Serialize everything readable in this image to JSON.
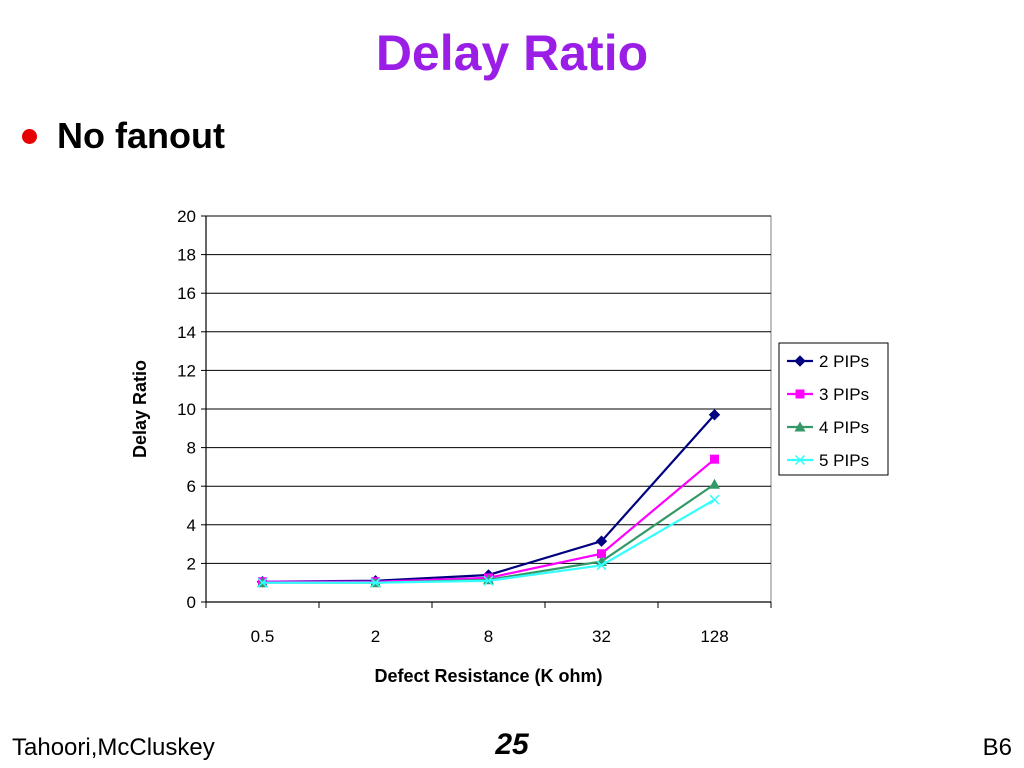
{
  "slide": {
    "title": "Delay Ratio",
    "bullet": "No fanout",
    "footer_left": "Tahoori,McCluskey",
    "page_number": "25",
    "footer_right": "B6"
  },
  "colors": {
    "title": "#9a1ee6",
    "bullet": "#e60000"
  },
  "chart_data": {
    "type": "line",
    "xlabel": "Defect Resistance (K ohm)",
    "ylabel": "Delay Ratio",
    "categories": [
      "0.5",
      "2",
      "8",
      "32",
      "128"
    ],
    "ylim": [
      0,
      20
    ],
    "yticks": [
      0,
      2,
      4,
      6,
      8,
      10,
      12,
      14,
      16,
      18,
      20
    ],
    "grid": true,
    "legend_position": "right",
    "series": [
      {
        "name": "2 PIPs",
        "color": "#000080",
        "marker": "diamond",
        "values": [
          1.05,
          1.1,
          1.4,
          3.15,
          9.7
        ]
      },
      {
        "name": "3 PIPs",
        "color": "#ff00ff",
        "marker": "square",
        "values": [
          1.05,
          1.05,
          1.25,
          2.5,
          7.4
        ]
      },
      {
        "name": "4 PIPs",
        "color": "#339966",
        "marker": "triangle",
        "values": [
          1.0,
          1.0,
          1.15,
          2.1,
          6.1
        ]
      },
      {
        "name": "5 PIPs",
        "color": "#33ffff",
        "marker": "x",
        "values": [
          1.0,
          1.0,
          1.1,
          1.9,
          5.3
        ]
      }
    ]
  }
}
